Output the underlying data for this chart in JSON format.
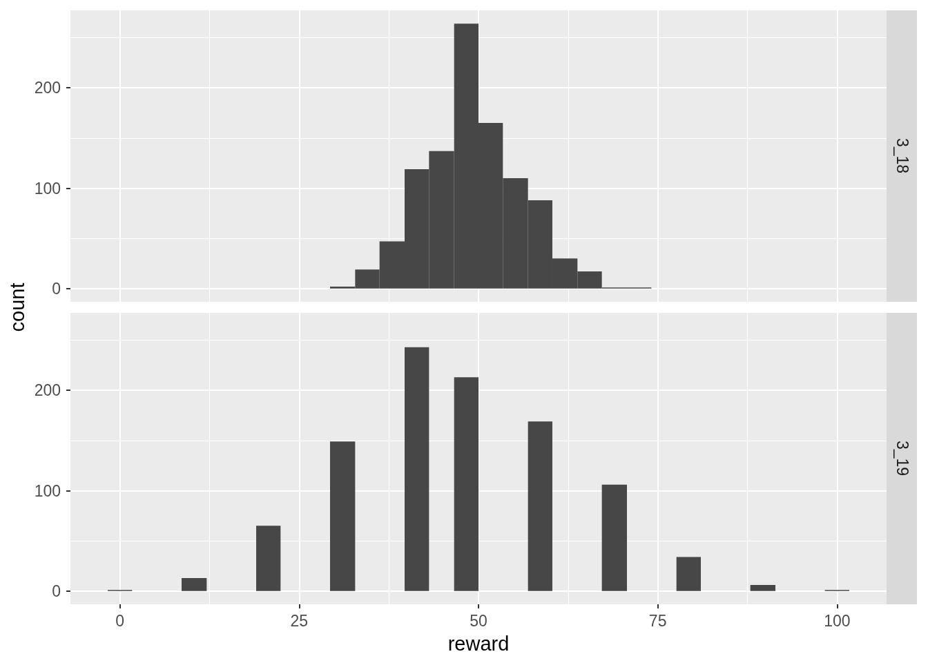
{
  "chart_data": [
    {
      "type": "histogram",
      "title": "3_18",
      "ylabel": "count",
      "bins": [
        29.3,
        32.8,
        36.2,
        39.7,
        43.1,
        46.6,
        50.0,
        53.4,
        56.9,
        60.3,
        63.8,
        67.2,
        70.7,
        74.1
      ],
      "values": [
        2,
        19,
        47,
        119,
        137,
        264,
        165,
        110,
        88,
        30,
        17,
        1,
        1
      ],
      "color": "#474747",
      "xlim": [
        -6.9,
        106.9
      ],
      "ylim": [
        -13.2,
        277.2
      ],
      "xticks": [
        0,
        25,
        50,
        75,
        100
      ],
      "yticks": [
        0,
        100,
        200
      ],
      "grid": true,
      "tick_labels": "y"
    },
    {
      "type": "histogram",
      "title": "3_19",
      "xlabel": "reward",
      "bins": [
        -1.7,
        1.7,
        8.6,
        12.1,
        19.0,
        22.4,
        29.3,
        32.8,
        39.7,
        43.1,
        46.6,
        50.0,
        56.9,
        60.3,
        67.2,
        70.7,
        77.6,
        81.0,
        87.9,
        91.4,
        98.3,
        101.7
      ],
      "values": [
        1,
        0,
        13,
        0,
        65,
        0,
        149,
        0,
        243,
        0,
        213,
        0,
        169,
        0,
        106,
        0,
        34,
        0,
        6,
        0,
        1
      ],
      "color": "#474747",
      "xlim": [
        -6.9,
        106.9
      ],
      "ylim": [
        -13.2,
        277.2
      ],
      "xticks": [
        0,
        25,
        50,
        75,
        100
      ],
      "yticks": [
        0,
        100,
        200
      ],
      "grid": true
    }
  ]
}
